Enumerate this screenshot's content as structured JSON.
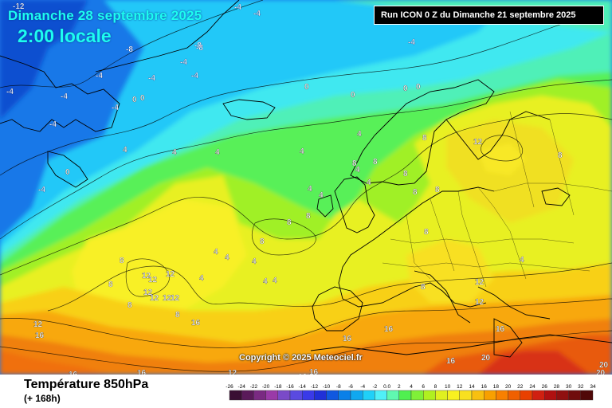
{
  "header": {
    "date_title": "Dimanche 28 septembre 2025",
    "time_title": "2:00 locale",
    "run_info": "Run ICON 0 Z du Dimanche 21 septembre 2025"
  },
  "footer": {
    "parameter_title": "Température 850hPa",
    "forecast_hour": "(+ 168h)",
    "copyright": "Copyright © 2025 Meteociel.fr"
  },
  "legend": {
    "values": [
      "-26",
      "-24",
      "-22",
      "-20",
      "-18",
      "-16",
      "-14",
      "-12",
      "-10",
      "-8",
      "-6",
      "-4",
      "-2",
      "0.0",
      "2",
      "4",
      "6",
      "8",
      "10",
      "12",
      "14",
      "16",
      "18",
      "20",
      "22",
      "24",
      "26",
      "28",
      "30",
      "32",
      "34"
    ],
    "colors": [
      "#3a0f33",
      "#5a1a5a",
      "#7a2a82",
      "#9a3aa8",
      "#7a4ac8",
      "#5a4ae0",
      "#3a3ae8",
      "#2030d8",
      "#1058e0",
      "#0a80e8",
      "#10a8f0",
      "#20d0f8",
      "#50f0f8",
      "#60f8b0",
      "#50f050",
      "#80f038",
      "#b0f020",
      "#e0f020",
      "#f8f020",
      "#f8e020",
      "#f8c010",
      "#f8a000",
      "#f88000",
      "#f06000",
      "#e84000",
      "#d02010",
      "#b01010",
      "#901010",
      "#700c0c",
      "#500808"
    ]
  },
  "contour_labels": [
    {
      "text": "-4",
      "cls": "neg"
    },
    {
      "text": "-4",
      "cls": "neg"
    },
    {
      "text": "-8",
      "cls": "neg"
    },
    {
      "text": "-8",
      "cls": "neg"
    },
    {
      "text": "-4",
      "cls": "neg"
    },
    {
      "text": "-4",
      "cls": "neg"
    },
    {
      "text": "-4",
      "cls": "neg"
    },
    {
      "text": "-12",
      "cls": "neg"
    },
    {
      "text": "-8",
      "cls": "neg"
    },
    {
      "text": "-4",
      "cls": "neg"
    },
    {
      "text": "-4",
      "cls": "neg"
    },
    {
      "text": "-4",
      "cls": "neg"
    },
    {
      "text": "-4",
      "cls": "neg"
    },
    {
      "text": "-4",
      "cls": "neg"
    },
    {
      "text": "-4",
      "cls": "neg"
    },
    {
      "text": "-4",
      "cls": "neg"
    },
    {
      "text": "0",
      "cls": "pos"
    },
    {
      "text": "0",
      "cls": "pos"
    },
    {
      "text": "0",
      "cls": "pos"
    },
    {
      "text": "0",
      "cls": "pos"
    },
    {
      "text": "0",
      "cls": "pos"
    },
    {
      "text": "0",
      "cls": "pos"
    },
    {
      "text": "0",
      "cls": "pos"
    },
    {
      "text": "4",
      "cls": "pos"
    },
    {
      "text": "4",
      "cls": "pos"
    },
    {
      "text": "4",
      "cls": "pos"
    },
    {
      "text": "4",
      "cls": "pos"
    },
    {
      "text": "4",
      "cls": "pos"
    },
    {
      "text": "4",
      "cls": "pos"
    },
    {
      "text": "4",
      "cls": "pos"
    },
    {
      "text": "4",
      "cls": "pos"
    },
    {
      "text": "4",
      "cls": "pos"
    },
    {
      "text": "4",
      "cls": "pos"
    },
    {
      "text": "4",
      "cls": "pos"
    },
    {
      "text": "4",
      "cls": "pos"
    },
    {
      "text": "4",
      "cls": "pos"
    },
    {
      "text": "4",
      "cls": "pos"
    },
    {
      "text": "4",
      "cls": "pos"
    },
    {
      "text": "4",
      "cls": "pos"
    },
    {
      "text": "8",
      "cls": "pos"
    },
    {
      "text": "8",
      "cls": "pos"
    },
    {
      "text": "8",
      "cls": "pos"
    },
    {
      "text": "8",
      "cls": "pos"
    },
    {
      "text": "8",
      "cls": "pos"
    },
    {
      "text": "8",
      "cls": "pos"
    },
    {
      "text": "8",
      "cls": "pos"
    },
    {
      "text": "8",
      "cls": "pos"
    },
    {
      "text": "8",
      "cls": "pos"
    },
    {
      "text": "8",
      "cls": "pos"
    },
    {
      "text": "8",
      "cls": "pos"
    },
    {
      "text": "8",
      "cls": "pos"
    },
    {
      "text": "8",
      "cls": "pos"
    },
    {
      "text": "8",
      "cls": "pos"
    },
    {
      "text": "8",
      "cls": "pos"
    },
    {
      "text": "8",
      "cls": "pos"
    },
    {
      "text": "12",
      "cls": "pos"
    },
    {
      "text": "12",
      "cls": "pos"
    },
    {
      "text": "12",
      "cls": "pos"
    },
    {
      "text": "12",
      "cls": "pos"
    },
    {
      "text": "12",
      "cls": "pos"
    },
    {
      "text": "12",
      "cls": "pos"
    },
    {
      "text": "12",
      "cls": "pos"
    },
    {
      "text": "12",
      "cls": "pos"
    },
    {
      "text": "12",
      "cls": "pos"
    },
    {
      "text": "12",
      "cls": "pos"
    },
    {
      "text": "12",
      "cls": "pos"
    },
    {
      "text": "12",
      "cls": "pos"
    },
    {
      "text": "16",
      "cls": "pos"
    },
    {
      "text": "16",
      "cls": "pos"
    },
    {
      "text": "16",
      "cls": "pos"
    },
    {
      "text": "16",
      "cls": "pos"
    },
    {
      "text": "16",
      "cls": "pos"
    },
    {
      "text": "16",
      "cls": "pos"
    },
    {
      "text": "16",
      "cls": "pos"
    },
    {
      "text": "16",
      "cls": "pos"
    },
    {
      "text": "16",
      "cls": "pos"
    },
    {
      "text": "16",
      "cls": "pos"
    },
    {
      "text": "20",
      "cls": "pos"
    },
    {
      "text": "20",
      "cls": "pos"
    },
    {
      "text": "20",
      "cls": "pos"
    },
    {
      "text": "20",
      "cls": "pos"
    }
  ]
}
